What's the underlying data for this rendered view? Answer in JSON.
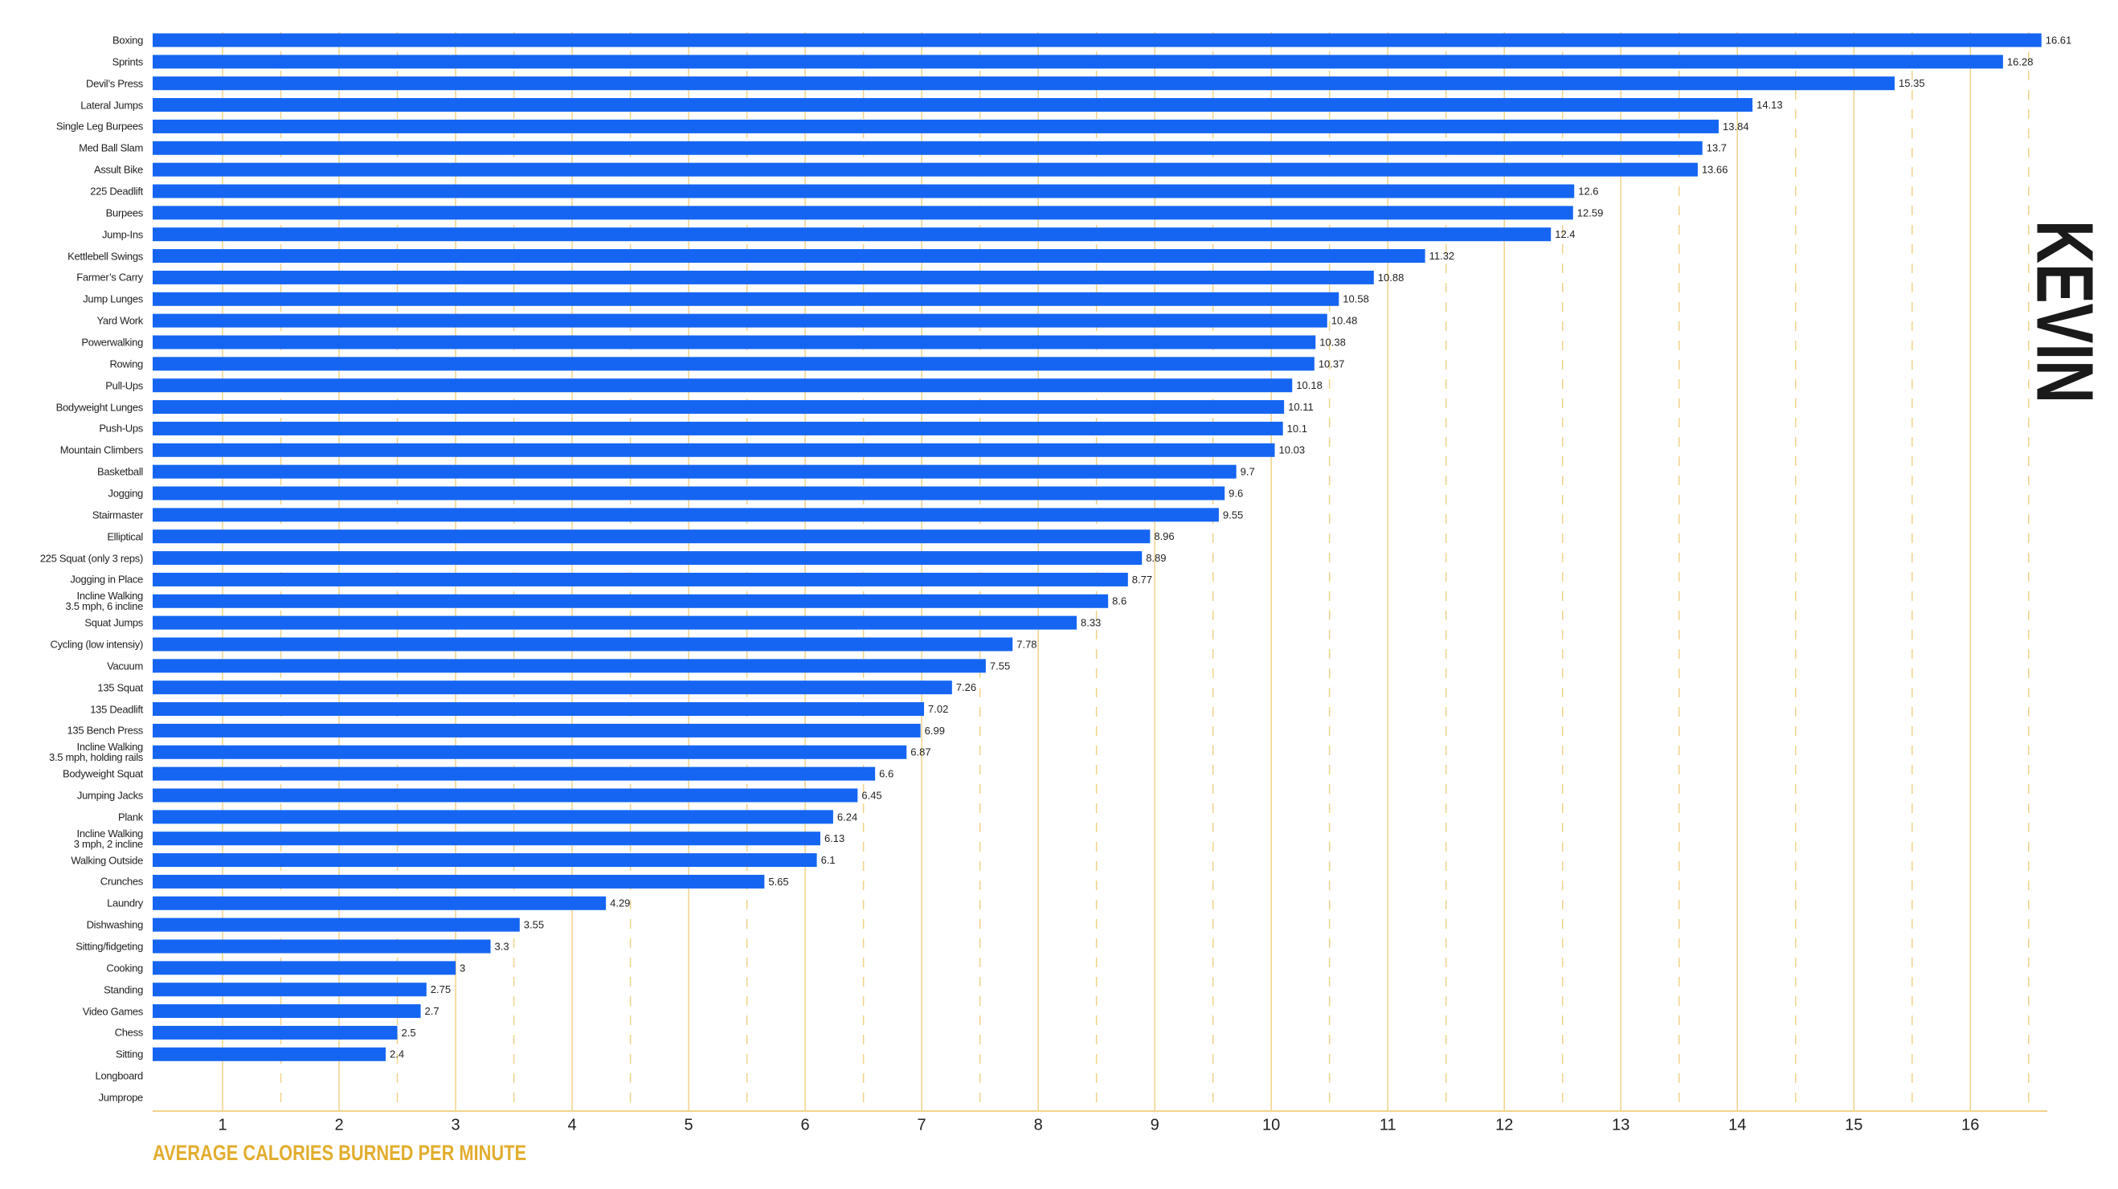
{
  "chart_data": {
    "type": "barh",
    "title": "KEVIN",
    "x_label": "AVERAGE CALORIES BURNED PER MINUTE",
    "categories": [
      "Boxing",
      "Sprints",
      "Devil’s Press",
      "Lateral Jumps",
      "Single Leg Burpees",
      "Med Ball Slam",
      "Assult Bike",
      "225 Deadlift",
      "Burpees",
      "Jump-Ins",
      "Kettlebell Swings",
      "Farmer’s Carry",
      "Jump Lunges",
      "Yard Work",
      "Powerwalking",
      "Rowing",
      "Pull-Ups",
      "Bodyweight Lunges",
      "Push-Ups",
      "Mountain Climbers",
      "Basketball",
      "Jogging",
      "Stairmaster",
      "Elliptical",
      "225 Squat (only 3 reps)",
      "Jogging in Place",
      "Incline Walking\n3.5 mph, 6 incline",
      "Squat Jumps",
      "Cycling (low intensiy)",
      "Vacuum",
      "135 Squat",
      "135 Deadlift",
      "135 Bench Press",
      "Incline Walking\n3.5 mph, holding rails",
      "Bodyweight Squat",
      "Jumping Jacks",
      "Plank",
      "Incline Walking\n3 mph, 2 incline",
      "Walking Outside",
      "Crunches",
      "Laundry",
      "Dishwashing",
      "Sitting/fidgeting",
      "Cooking",
      "Standing",
      "Video Games",
      "Chess",
      "Sitting",
      "Longboard",
      "Jumprope"
    ],
    "values": [
      16.61,
      16.28,
      15.35,
      14.13,
      13.84,
      13.7,
      13.66,
      12.6,
      12.59,
      12.4,
      11.32,
      10.88,
      10.58,
      10.48,
      10.38,
      10.37,
      10.18,
      10.11,
      10.1,
      10.03,
      9.7,
      9.6,
      9.55,
      8.96,
      8.89,
      8.77,
      8.6,
      8.33,
      7.78,
      7.55,
      7.26,
      7.02,
      6.99,
      6.87,
      6.6,
      6.45,
      6.24,
      6.13,
      6.1,
      5.65,
      4.29,
      3.55,
      3.3,
      3,
      2.75,
      2.7,
      2.5,
      2.4,
      null,
      null
    ],
    "color": "#1565f2",
    "xlim": [
      0.4,
      16.66
    ],
    "xticks": [
      1,
      2,
      3,
      4,
      5,
      6,
      7,
      8,
      9,
      10,
      11,
      12,
      13,
      14,
      15,
      16
    ],
    "minor_xticks": [
      1.5,
      2.5,
      3.5,
      4.5,
      5.5,
      6.5,
      7.5,
      8.5,
      9.5,
      10.5,
      11.5,
      12.5,
      13.5,
      14.5,
      15.5,
      16.5
    ],
    "grid": true,
    "grid_color": "#f0d38a"
  }
}
